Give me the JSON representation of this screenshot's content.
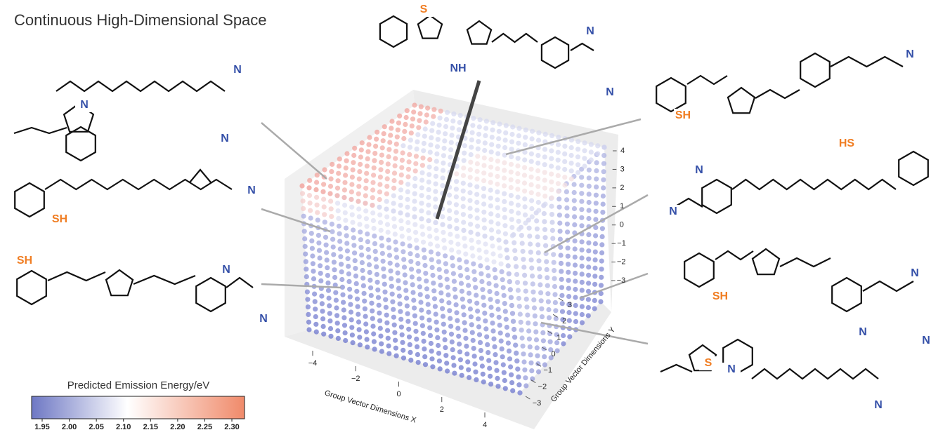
{
  "title": "Continuous High-Dimensional Space",
  "colorbar": {
    "label": "Predicted Emission Energy/eV",
    "ticks": [
      1.95,
      {
        "value": 2.0,
        "label": "2.00"
      },
      2.05,
      {
        "value": 2.1,
        "label": "2.10"
      },
      2.15,
      {
        "value": 2.2,
        "label": "2.20"
      },
      2.25,
      {
        "value": 2.3,
        "label": "2.30"
      }
    ]
  },
  "plot": {
    "x_label": "Group Vector Dimensions X",
    "x_ticks": [
      {
        "value": -4,
        "label": "−4"
      },
      {
        "value": -2,
        "label": "−2"
      },
      0,
      2,
      4
    ],
    "y_label": "Group Vector Dimensions Y",
    "y_ticks": [
      {
        "value": -3,
        "label": "−3"
      },
      {
        "value": -2,
        "label": "−2"
      },
      {
        "value": -1,
        "label": "−1"
      },
      0,
      1,
      2,
      3
    ],
    "z_ticks": [
      {
        "value": -3,
        "label": "−3"
      },
      {
        "value": -2,
        "label": "−2"
      },
      {
        "value": -1,
        "label": "−1"
      },
      0,
      1,
      2,
      3,
      4
    ]
  },
  "molecules": [
    {
      "atoms": [
        "S",
        "NH",
        "N",
        "N"
      ]
    },
    {
      "atoms": [
        "N",
        "N"
      ]
    },
    {
      "atoms": [
        "SH",
        "N",
        "N"
      ]
    },
    {
      "atoms": [
        "SH",
        "N",
        "N"
      ]
    },
    {
      "atoms": [
        "SH",
        "N"
      ]
    },
    {
      "atoms": [
        "N",
        "N",
        "HS"
      ]
    },
    {
      "atoms": [
        "SH",
        "N",
        "N"
      ]
    },
    {
      "atoms": [
        "S",
        "N",
        "N",
        "N"
      ]
    }
  ]
}
